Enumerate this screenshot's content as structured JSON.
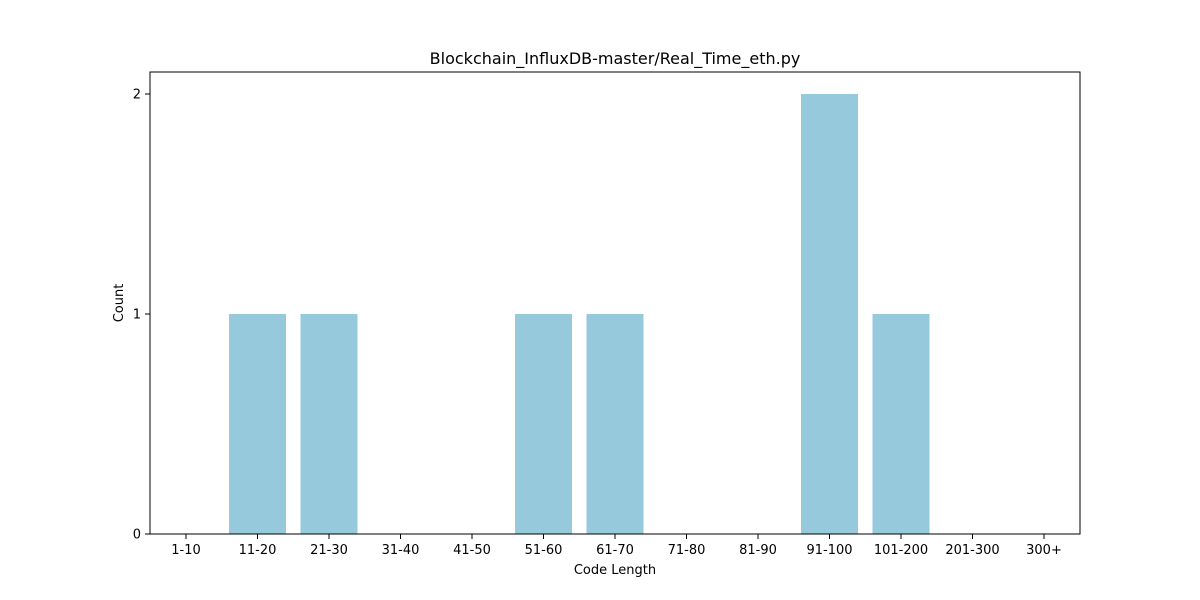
{
  "chart_data": {
    "type": "bar",
    "title": "Blockchain_InfluxDB-master/Real_Time_eth.py",
    "xlabel": "Code Length",
    "ylabel": "Count",
    "categories": [
      "1-10",
      "11-20",
      "21-30",
      "31-40",
      "41-50",
      "51-60",
      "61-70",
      "71-80",
      "81-90",
      "91-100",
      "101-200",
      "201-300",
      "300+"
    ],
    "values": [
      0,
      1,
      1,
      0,
      0,
      1,
      1,
      0,
      0,
      2,
      1,
      0,
      0
    ],
    "ylim": [
      0,
      2.1
    ],
    "yticks": [
      0,
      1,
      2
    ],
    "grid": false,
    "legend": "none",
    "bar_color": "#96c9dc"
  }
}
